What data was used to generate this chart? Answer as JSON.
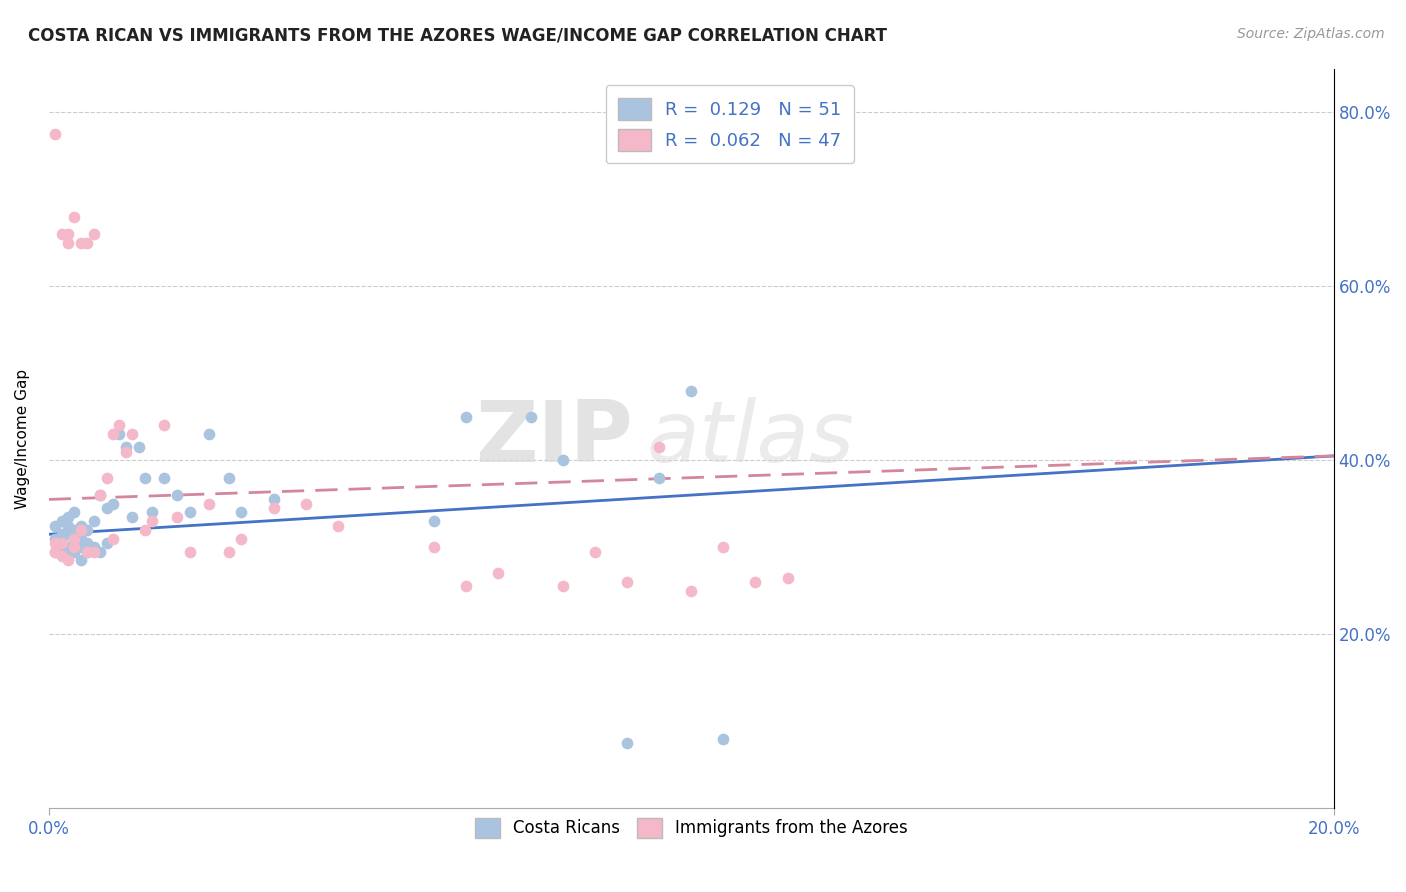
{
  "title": "COSTA RICAN VS IMMIGRANTS FROM THE AZORES WAGE/INCOME GAP CORRELATION CHART",
  "source": "Source: ZipAtlas.com",
  "ylabel": "Wage/Income Gap",
  "legend_blue_label": "Costa Ricans",
  "legend_pink_label": "Immigrants from the Azores",
  "R_blue": 0.129,
  "N_blue": 51,
  "R_pink": 0.062,
  "N_pink": 47,
  "blue_color": "#aac4e0",
  "pink_color": "#f4b8c8",
  "blue_line_color": "#4472c4",
  "pink_line_color": "#d4869a",
  "watermark_zip": "ZIP",
  "watermark_atlas": "atlas",
  "xmin": 0.0,
  "xmax": 0.2,
  "ymin": 0.0,
  "ymax": 0.85,
  "yticks": [
    0.2,
    0.4,
    0.6,
    0.8
  ],
  "yticklabels": [
    "20.0%",
    "40.0%",
    "60.0%",
    "80.0%"
  ],
  "blue_trend_x": [
    0.0,
    0.2
  ],
  "blue_trend_y": [
    0.315,
    0.405
  ],
  "pink_trend_x": [
    0.0,
    0.2
  ],
  "pink_trend_y": [
    0.355,
    0.405
  ],
  "blue_x": [
    0.001,
    0.001,
    0.001,
    0.002,
    0.002,
    0.002,
    0.002,
    0.003,
    0.003,
    0.003,
    0.003,
    0.003,
    0.004,
    0.004,
    0.004,
    0.004,
    0.005,
    0.005,
    0.005,
    0.005,
    0.006,
    0.006,
    0.006,
    0.007,
    0.007,
    0.008,
    0.008,
    0.009,
    0.009,
    0.01,
    0.011,
    0.012,
    0.013,
    0.014,
    0.015,
    0.016,
    0.018,
    0.02,
    0.022,
    0.025,
    0.028,
    0.03,
    0.035,
    0.06,
    0.065,
    0.075,
    0.08,
    0.09,
    0.095,
    0.1,
    0.105
  ],
  "blue_y": [
    0.295,
    0.31,
    0.325,
    0.295,
    0.305,
    0.315,
    0.33,
    0.29,
    0.3,
    0.315,
    0.325,
    0.335,
    0.295,
    0.305,
    0.32,
    0.34,
    0.285,
    0.3,
    0.31,
    0.325,
    0.295,
    0.305,
    0.32,
    0.3,
    0.33,
    0.295,
    0.36,
    0.305,
    0.345,
    0.35,
    0.43,
    0.415,
    0.335,
    0.415,
    0.38,
    0.34,
    0.38,
    0.36,
    0.34,
    0.43,
    0.38,
    0.34,
    0.355,
    0.33,
    0.45,
    0.45,
    0.4,
    0.075,
    0.38,
    0.48,
    0.08
  ],
  "pink_x": [
    0.001,
    0.001,
    0.001,
    0.002,
    0.002,
    0.002,
    0.003,
    0.003,
    0.003,
    0.004,
    0.004,
    0.004,
    0.005,
    0.005,
    0.006,
    0.006,
    0.007,
    0.007,
    0.008,
    0.009,
    0.01,
    0.01,
    0.011,
    0.012,
    0.013,
    0.015,
    0.016,
    0.018,
    0.02,
    0.022,
    0.025,
    0.028,
    0.03,
    0.035,
    0.04,
    0.045,
    0.06,
    0.065,
    0.07,
    0.08,
    0.085,
    0.09,
    0.095,
    0.1,
    0.105,
    0.11,
    0.115
  ],
  "pink_y": [
    0.295,
    0.305,
    0.775,
    0.29,
    0.305,
    0.66,
    0.285,
    0.65,
    0.66,
    0.68,
    0.3,
    0.31,
    0.65,
    0.32,
    0.295,
    0.65,
    0.295,
    0.66,
    0.36,
    0.38,
    0.43,
    0.31,
    0.44,
    0.41,
    0.43,
    0.32,
    0.33,
    0.44,
    0.335,
    0.295,
    0.35,
    0.295,
    0.31,
    0.345,
    0.35,
    0.325,
    0.3,
    0.255,
    0.27,
    0.255,
    0.295,
    0.26,
    0.415,
    0.25,
    0.3,
    0.26,
    0.265
  ]
}
